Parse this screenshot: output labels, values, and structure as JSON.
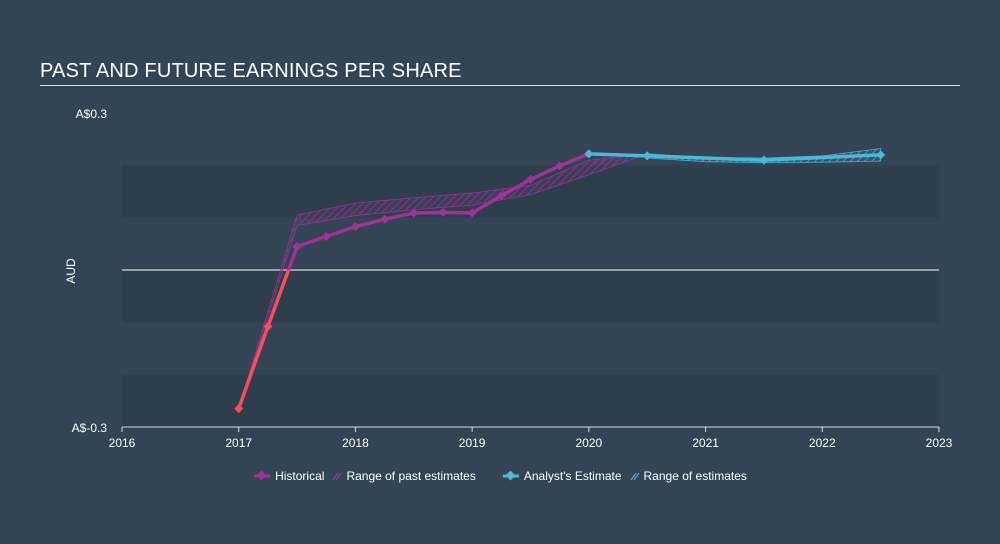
{
  "title": "PAST AND FUTURE EARNINGS PER SHARE",
  "colors": {
    "background": "#344454",
    "band": "#2e3e4d",
    "historical": "#a0329a",
    "historical_negative": "#f44f5a",
    "estimate": "#4ab8dc",
    "past_range": "#a0329a",
    "future_range": "#4ab8dc"
  },
  "legend": {
    "historical": "Historical",
    "past_range": "Range of past estimates",
    "estimate": "Analyst's Estimate",
    "future_range": "Range of estimates"
  },
  "chart_data": {
    "type": "line",
    "ylabel": "AUD",
    "y_tick_labels": [
      "A$0.3",
      "A$-0.3"
    ],
    "ylim": [
      -0.3,
      0.3
    ],
    "xlim": [
      2016,
      2023
    ],
    "x_ticks": [
      "2016",
      "2017",
      "2018",
      "2019",
      "2020",
      "2021",
      "2022",
      "2023"
    ],
    "zero_line": 0,
    "series": [
      {
        "name": "Historical",
        "points": [
          [
            2017.0,
            -0.265
          ],
          [
            2017.25,
            -0.108
          ],
          [
            2017.5,
            0.045
          ],
          [
            2017.75,
            0.064
          ],
          [
            2018.0,
            0.083
          ],
          [
            2018.25,
            0.097
          ],
          [
            2018.5,
            0.109
          ],
          [
            2018.75,
            0.11
          ],
          [
            2019.0,
            0.109
          ],
          [
            2019.25,
            0.142
          ],
          [
            2019.5,
            0.173
          ],
          [
            2019.75,
            0.199
          ],
          [
            2020.0,
            0.222
          ]
        ]
      },
      {
        "name": "Analyst's Estimate",
        "points": [
          [
            2020.0,
            0.222
          ],
          [
            2020.5,
            0.218
          ],
          [
            2021.5,
            0.21
          ],
          [
            2022.5,
            0.22
          ]
        ]
      }
    ],
    "ranges": [
      {
        "name": "Range of past estimates",
        "upper": [
          [
            2017.0,
            -0.265
          ],
          [
            2017.5,
            0.105
          ],
          [
            2018.0,
            0.128
          ],
          [
            2018.5,
            0.138
          ],
          [
            2019.0,
            0.147
          ],
          [
            2019.5,
            0.162
          ],
          [
            2020.0,
            0.21
          ],
          [
            2020.5,
            0.222
          ]
        ],
        "lower": [
          [
            2017.0,
            -0.265
          ],
          [
            2017.5,
            0.085
          ],
          [
            2018.0,
            0.104
          ],
          [
            2018.5,
            0.115
          ],
          [
            2019.0,
            0.124
          ],
          [
            2019.5,
            0.144
          ],
          [
            2020.0,
            0.182
          ],
          [
            2020.5,
            0.222
          ]
        ]
      },
      {
        "name": "Range of estimates",
        "upper": [
          [
            2020.5,
            0.222
          ],
          [
            2021.0,
            0.215
          ],
          [
            2021.5,
            0.214
          ],
          [
            2022.0,
            0.218
          ],
          [
            2022.5,
            0.232
          ]
        ],
        "lower": [
          [
            2020.5,
            0.214
          ],
          [
            2021.0,
            0.207
          ],
          [
            2021.5,
            0.205
          ],
          [
            2022.0,
            0.206
          ],
          [
            2022.5,
            0.208
          ]
        ]
      }
    ]
  }
}
